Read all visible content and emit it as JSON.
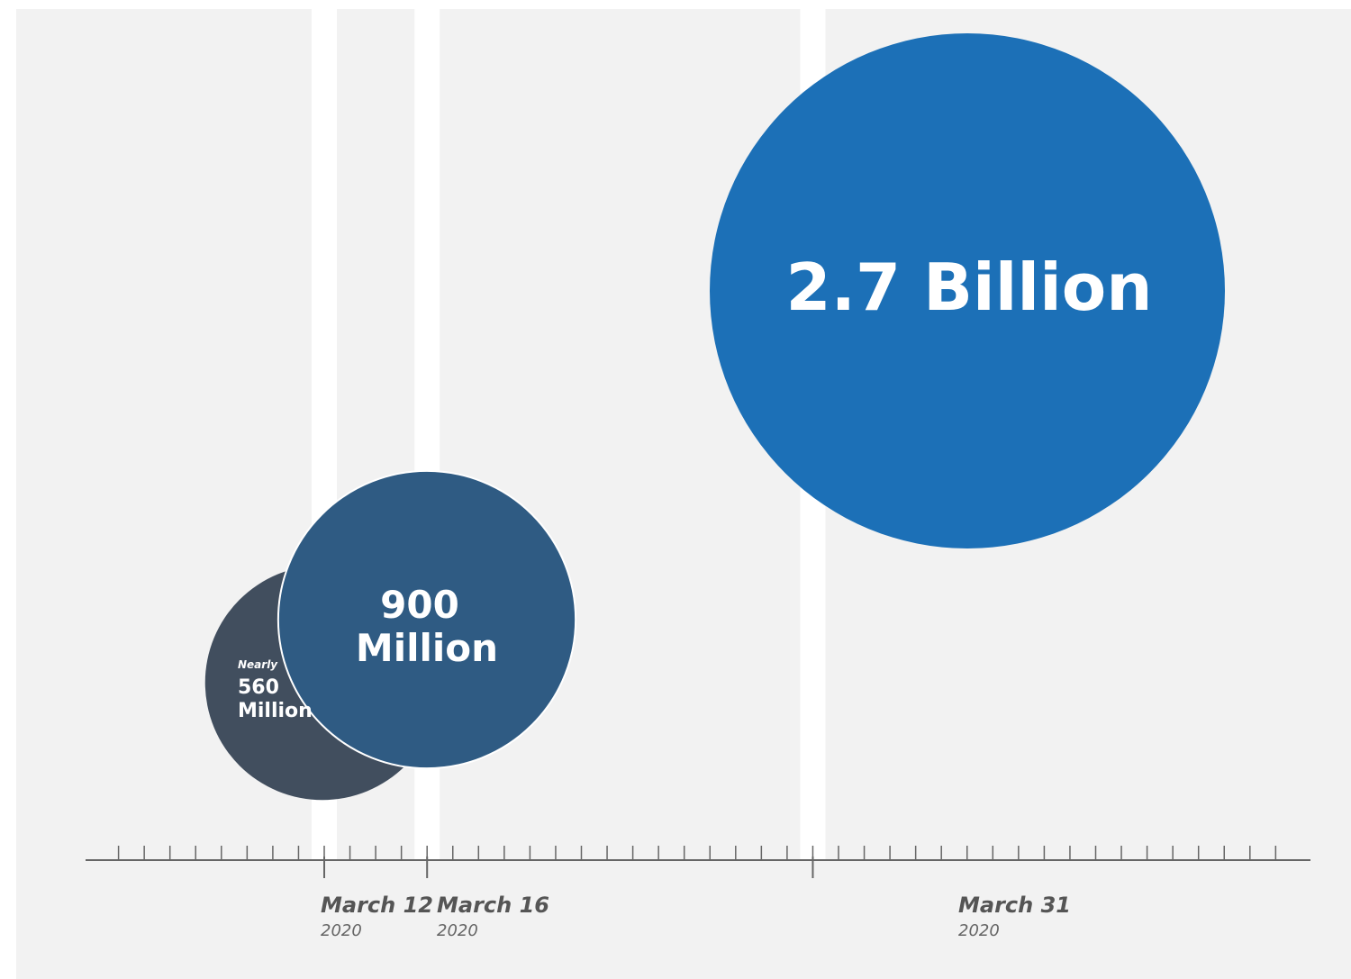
{
  "colors": {
    "background": "#f2f2f2",
    "frame": "#ffffff",
    "guide": "#ffffff",
    "axis": "#666666",
    "bubble_560": "#414e5e",
    "bubble_900": "#2f5b83",
    "bubble_2700": "#1c70b7",
    "text": "#ffffff"
  },
  "chart_data": {
    "type": "bubble-timeline",
    "x_axis": {
      "type": "date",
      "range": [
        "2020-03-01",
        "2020-04-05"
      ],
      "tick_interval": "1 day"
    },
    "series": [
      {
        "values": [
          {
            "date": "2020-03-12",
            "value": 560000000,
            "label_lines": [
              "Nearly",
              "560",
              "Million"
            ],
            "date_label": "March 12",
            "year_label": "2020",
            "color": "#414e5e"
          },
          {
            "date": "2020-03-16",
            "value": 900000000,
            "label_lines": [
              "900",
              "Million"
            ],
            "date_label": "March 16",
            "year_label": "2020",
            "color": "#2f5b83"
          },
          {
            "date": "2020-03-31",
            "value": 2700000000,
            "label_lines": [
              "2.7 Billion"
            ],
            "date_label": "March 31",
            "year_label": "2020",
            "color": "#1c70b7"
          }
        ]
      }
    ],
    "grid": false,
    "legend": "none"
  }
}
